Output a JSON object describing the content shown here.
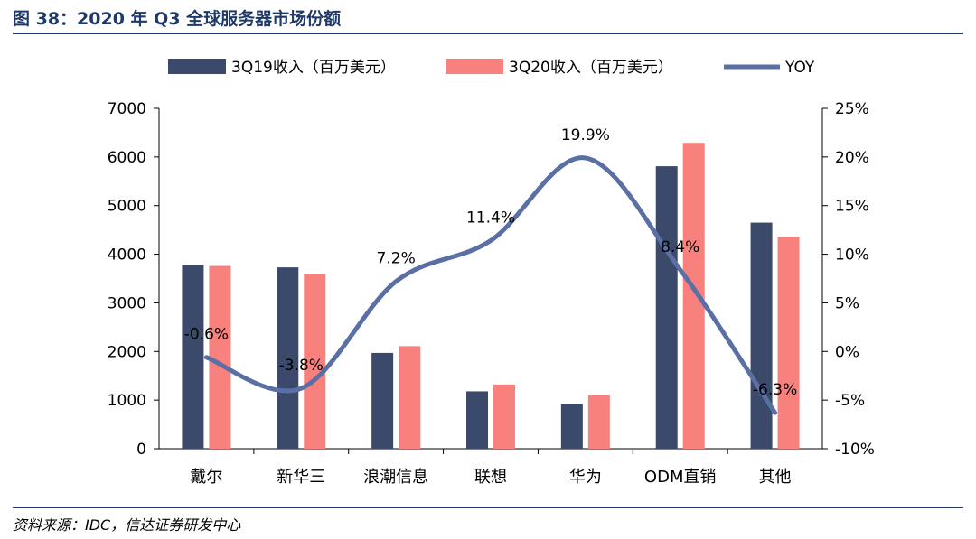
{
  "figure_title": "图 38：2020 年 Q3 全球服务器市场份额",
  "source": "资料来源：IDC，信达证券研发中心",
  "colors": {
    "s1": "#3b4a6b",
    "s2": "#f8807d",
    "line": "#5a6fa3",
    "title": "#1f3a68"
  },
  "chart_data": {
    "type": "bar",
    "title": "2020 年 Q3 全球服务器市场份额",
    "categories": [
      "戴尔",
      "新华三",
      "浪潮信息",
      "联想",
      "华为",
      "ODM直销",
      "其他"
    ],
    "series": [
      {
        "name": "3Q19收入（百万美元）",
        "type": "bar",
        "axis": "left",
        "values": [
          3780,
          3730,
          1970,
          1180,
          910,
          5810,
          4650
        ]
      },
      {
        "name": "3Q20收入（百万美元）",
        "type": "bar",
        "axis": "left",
        "values": [
          3760,
          3590,
          2110,
          1320,
          1100,
          6290,
          4360
        ]
      },
      {
        "name": "YOY",
        "type": "line",
        "axis": "right",
        "values": [
          -0.6,
          -3.8,
          7.2,
          11.4,
          19.9,
          8.4,
          -6.3
        ]
      }
    ],
    "data_labels": [
      "-0.6%",
      "-3.8%",
      "7.2%",
      "11.4%",
      "19.9%",
      "8.4%",
      "-6.3%"
    ],
    "y_left": {
      "min": 0,
      "max": 7000,
      "ticks": [
        "0",
        "1000",
        "2000",
        "3000",
        "4000",
        "5000",
        "6000",
        "7000"
      ]
    },
    "y_right": {
      "min": -10,
      "max": 25,
      "ticks": [
        "-10%",
        "-5%",
        "0%",
        "5%",
        "10%",
        "15%",
        "20%",
        "25%"
      ]
    },
    "legend_position": "top",
    "grid": false
  }
}
